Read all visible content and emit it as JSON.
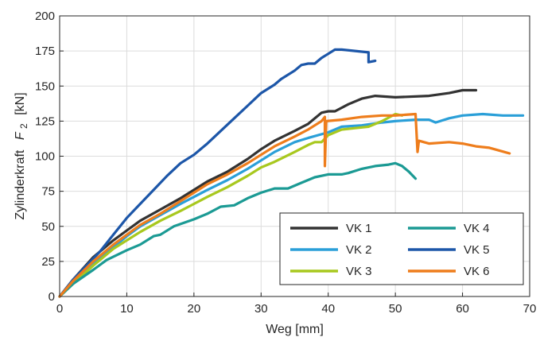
{
  "chart_data": {
    "type": "line",
    "xlabel": "Weg [mm]",
    "ylabel": "Zylinderkraft",
    "ylabel_symbol": "F",
    "ylabel_subscript": "2",
    "ylabel_unit": "[kN]",
    "xlim": [
      0,
      70
    ],
    "ylim": [
      0,
      200
    ],
    "xticks": [
      0,
      10,
      20,
      30,
      40,
      50,
      60,
      70
    ],
    "yticks": [
      0,
      25,
      50,
      75,
      100,
      125,
      150,
      175,
      200
    ],
    "grid": true,
    "legend_placement": "bottom-right",
    "series": [
      {
        "name": "VK 1",
        "color": "#333333",
        "points": [
          [
            0,
            0
          ],
          [
            2,
            12
          ],
          [
            5,
            28
          ],
          [
            8,
            40
          ],
          [
            10,
            47
          ],
          [
            12,
            54
          ],
          [
            15,
            62
          ],
          [
            18,
            70
          ],
          [
            20,
            76
          ],
          [
            22,
            82
          ],
          [
            25,
            89
          ],
          [
            28,
            98
          ],
          [
            30,
            105
          ],
          [
            32,
            111
          ],
          [
            35,
            118
          ],
          [
            37,
            123
          ],
          [
            39,
            131
          ],
          [
            40,
            132
          ],
          [
            41,
            132
          ],
          [
            43,
            137
          ],
          [
            45,
            141
          ],
          [
            47,
            143
          ],
          [
            50,
            142
          ],
          [
            55,
            143
          ],
          [
            58,
            145
          ],
          [
            60,
            147
          ],
          [
            62,
            147
          ]
        ]
      },
      {
        "name": "VK 2",
        "color": "#2a9fd8",
        "points": [
          [
            0,
            0
          ],
          [
            2,
            10
          ],
          [
            5,
            24
          ],
          [
            8,
            35
          ],
          [
            10,
            43
          ],
          [
            12,
            50
          ],
          [
            15,
            58
          ],
          [
            18,
            66
          ],
          [
            20,
            71
          ],
          [
            22,
            76
          ],
          [
            25,
            83
          ],
          [
            28,
            91
          ],
          [
            30,
            97
          ],
          [
            32,
            103
          ],
          [
            35,
            110
          ],
          [
            37,
            113
          ],
          [
            40,
            117
          ],
          [
            42,
            121
          ],
          [
            45,
            122
          ],
          [
            48,
            124
          ],
          [
            50,
            125
          ],
          [
            53,
            126
          ],
          [
            55,
            126
          ],
          [
            56,
            124
          ],
          [
            58,
            127
          ],
          [
            60,
            129
          ],
          [
            63,
            130
          ],
          [
            66,
            129
          ],
          [
            69,
            129
          ]
        ]
      },
      {
        "name": "VK 3",
        "color": "#a8c81e",
        "points": [
          [
            0,
            0
          ],
          [
            2,
            9
          ],
          [
            5,
            22
          ],
          [
            8,
            34
          ],
          [
            10,
            40
          ],
          [
            12,
            46
          ],
          [
            15,
            54
          ],
          [
            18,
            61
          ],
          [
            20,
            66
          ],
          [
            22,
            71
          ],
          [
            25,
            78
          ],
          [
            28,
            86
          ],
          [
            30,
            92
          ],
          [
            32,
            96
          ],
          [
            35,
            103
          ],
          [
            37,
            108
          ],
          [
            38,
            110
          ],
          [
            39,
            110
          ],
          [
            40,
            115
          ],
          [
            42,
            119
          ],
          [
            44,
            120
          ],
          [
            46,
            121
          ],
          [
            48,
            125
          ],
          [
            50,
            130
          ],
          [
            51,
            129
          ]
        ]
      },
      {
        "name": "VK 4",
        "color": "#1b9a94",
        "points": [
          [
            0,
            0
          ],
          [
            2,
            9
          ],
          [
            5,
            19
          ],
          [
            7,
            26
          ],
          [
            10,
            33
          ],
          [
            12,
            37
          ],
          [
            14,
            43
          ],
          [
            15,
            44
          ],
          [
            17,
            50
          ],
          [
            20,
            55
          ],
          [
            22,
            59
          ],
          [
            24,
            64
          ],
          [
            26,
            65
          ],
          [
            28,
            70
          ],
          [
            30,
            74
          ],
          [
            32,
            77
          ],
          [
            34,
            77
          ],
          [
            36,
            81
          ],
          [
            38,
            85
          ],
          [
            40,
            87
          ],
          [
            42,
            87
          ],
          [
            43,
            88
          ],
          [
            45,
            91
          ],
          [
            47,
            93
          ],
          [
            49,
            94
          ],
          [
            50,
            95
          ],
          [
            51,
            93
          ],
          [
            52,
            89
          ],
          [
            53,
            84
          ]
        ]
      },
      {
        "name": "VK 5",
        "color": "#1c56a8",
        "points": [
          [
            0,
            0
          ],
          [
            2,
            12
          ],
          [
            4,
            22
          ],
          [
            6,
            32
          ],
          [
            8,
            44
          ],
          [
            10,
            56
          ],
          [
            12,
            66
          ],
          [
            14,
            76
          ],
          [
            16,
            86
          ],
          [
            18,
            95
          ],
          [
            20,
            101
          ],
          [
            22,
            109
          ],
          [
            24,
            118
          ],
          [
            26,
            127
          ],
          [
            28,
            136
          ],
          [
            30,
            145
          ],
          [
            32,
            151
          ],
          [
            33,
            155
          ],
          [
            35,
            161
          ],
          [
            36,
            165
          ],
          [
            37,
            166
          ],
          [
            38,
            166
          ],
          [
            39,
            170
          ],
          [
            40,
            173
          ],
          [
            41,
            176
          ],
          [
            42,
            176
          ],
          [
            44,
            175
          ],
          [
            46,
            174
          ],
          [
            46,
            167
          ],
          [
            47,
            168
          ]
        ]
      },
      {
        "name": "VK 6",
        "color": "#ee7d1c",
        "points": [
          [
            0,
            0
          ],
          [
            2,
            11
          ],
          [
            5,
            25
          ],
          [
            8,
            37
          ],
          [
            10,
            44
          ],
          [
            12,
            51
          ],
          [
            15,
            59
          ],
          [
            18,
            68
          ],
          [
            20,
            74
          ],
          [
            22,
            80
          ],
          [
            25,
            87
          ],
          [
            28,
            95
          ],
          [
            30,
            101
          ],
          [
            32,
            107
          ],
          [
            35,
            114
          ],
          [
            37,
            119
          ],
          [
            38,
            122
          ],
          [
            39,
            125
          ],
          [
            39.5,
            128
          ],
          [
            39.5,
            93
          ],
          [
            39.7,
            125
          ],
          [
            42,
            126
          ],
          [
            45,
            128
          ],
          [
            48,
            129
          ],
          [
            50,
            129
          ],
          [
            53,
            130
          ],
          [
            53.3,
            103
          ],
          [
            53.5,
            111
          ],
          [
            55,
            109
          ],
          [
            58,
            110
          ],
          [
            60,
            109
          ],
          [
            62,
            107
          ],
          [
            64,
            106
          ],
          [
            67,
            102
          ]
        ]
      }
    ]
  }
}
